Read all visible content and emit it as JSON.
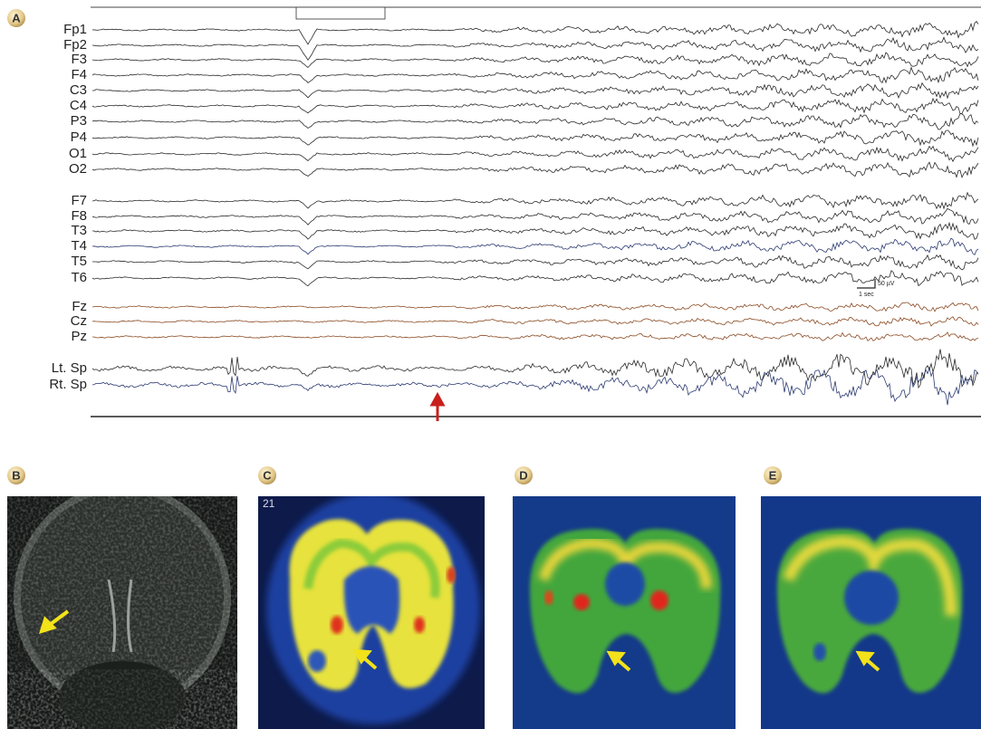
{
  "panels": [
    {
      "label": "A",
      "channels": [
        "Fp1",
        "Fp2",
        "F3",
        "F4",
        "C3",
        "C4",
        "P3",
        "P4",
        "O1",
        "O2",
        "F7",
        "F8",
        "T3",
        "T4",
        "T5",
        "T6",
        "Fz",
        "Cz",
        "Pz",
        "Lt. Sp",
        "Rt. Sp"
      ]
    },
    {
      "label": "B"
    },
    {
      "label": "C",
      "slice_number": "21"
    },
    {
      "label": "D"
    },
    {
      "label": "E"
    }
  ],
  "scale_bar": {
    "time": "1 sec",
    "amplitude": "50 µV"
  }
}
